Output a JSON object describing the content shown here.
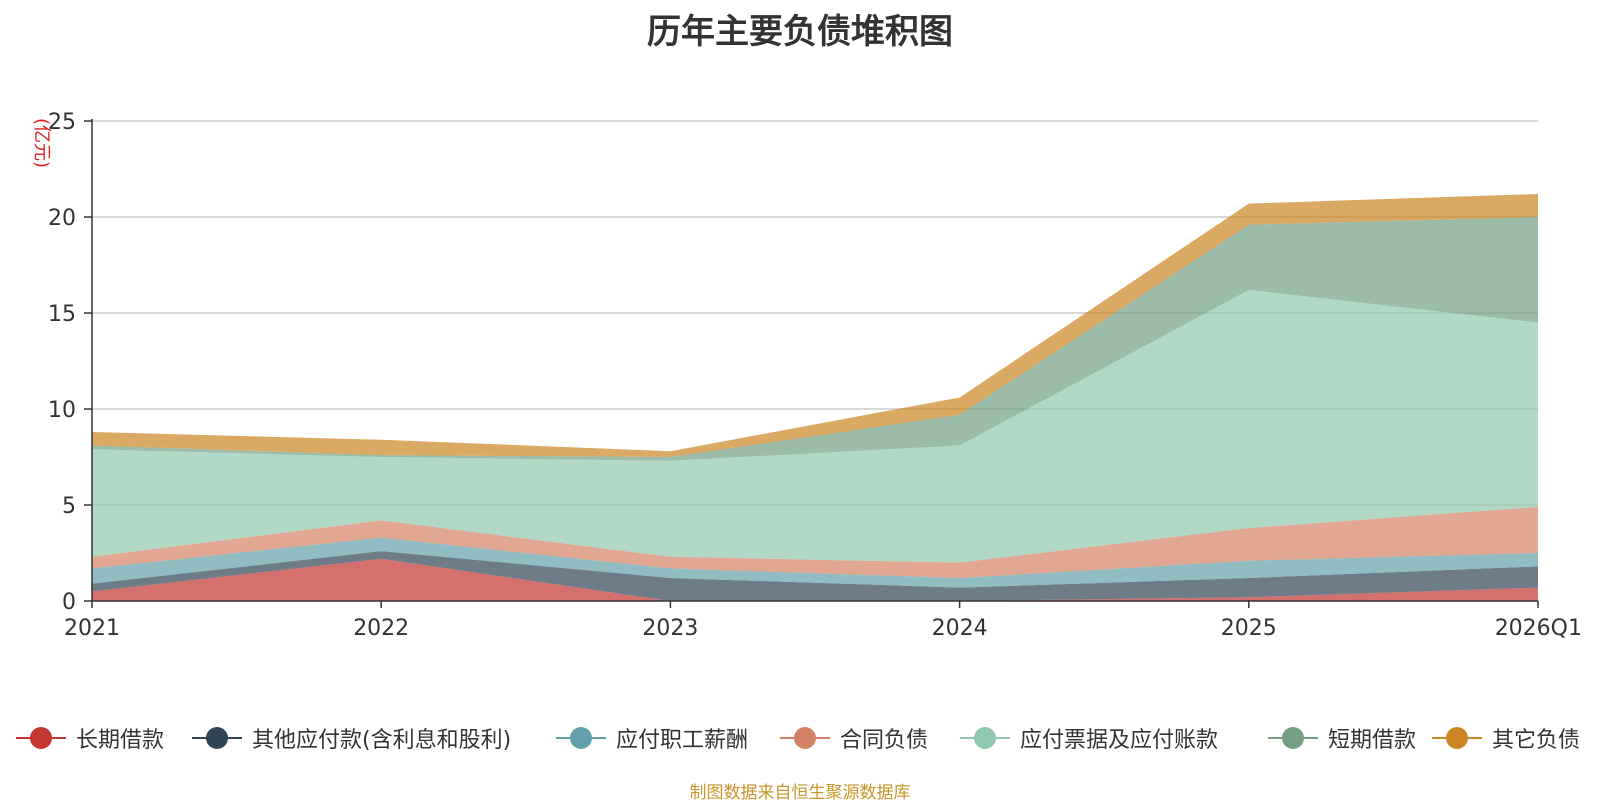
{
  "chart_data": {
    "type": "area",
    "stacked": true,
    "title": "历年主要负债堆积图",
    "ylabel": "(亿元)",
    "xlabel": "",
    "categories": [
      "2021",
      "2022",
      "2023",
      "2024",
      "2025",
      "2026Q1"
    ],
    "ylim": [
      0,
      25
    ],
    "yticks": [
      0,
      5,
      10,
      15,
      20,
      25
    ],
    "grid": true,
    "legend_position": "bottom",
    "series": [
      {
        "name": "长期借款",
        "color": "#c23531",
        "values": [
          0.5,
          2.2,
          0.0,
          0.0,
          0.2,
          0.7
        ]
      },
      {
        "name": "其他应付款(含利息和股利)",
        "color": "#2f4554",
        "values": [
          0.4,
          0.4,
          1.2,
          0.7,
          1.0,
          1.1
        ]
      },
      {
        "name": "应付职工薪酬",
        "color": "#61a0a8",
        "values": [
          0.8,
          0.7,
          0.5,
          0.5,
          0.9,
          0.7
        ]
      },
      {
        "name": "合同负债",
        "color": "#d48265",
        "values": [
          0.6,
          0.9,
          0.6,
          0.8,
          1.7,
          2.4
        ]
      },
      {
        "name": "应付票据及应付账款",
        "color": "#91c7ae",
        "values": [
          5.6,
          3.3,
          5.0,
          6.1,
          12.4,
          9.6
        ]
      },
      {
        "name": "短期借款",
        "color": "#749f83",
        "values": [
          0.2,
          0.1,
          0.2,
          1.6,
          3.4,
          5.5
        ]
      },
      {
        "name": "其它负债",
        "color": "#ca8622",
        "values": [
          0.7,
          0.8,
          0.3,
          0.9,
          1.1,
          1.2
        ]
      }
    ],
    "source_note": "制图数据来自恒生聚源数据库"
  }
}
